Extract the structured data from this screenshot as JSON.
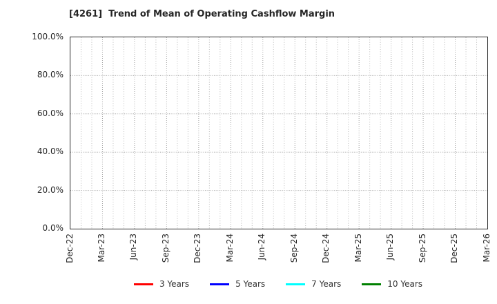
{
  "colors": {
    "background": "#ffffff",
    "text": "#262626",
    "spine": "#262626",
    "grid_minor": "#bdbdbd",
    "grid_major": "#a6a6a6",
    "legend_text": "#333333"
  },
  "chart_data": {
    "type": "line",
    "title": "[4261]  Trend of Mean of Operating Cashflow Margin",
    "x_axis": {
      "tick_labels": [
        "Dec-22",
        "Mar-23",
        "Jun-23",
        "Sep-23",
        "Dec-23",
        "Mar-24",
        "Jun-24",
        "Sep-24",
        "Dec-24",
        "Mar-25",
        "Jun-25",
        "Sep-25",
        "Dec-25",
        "Mar-26"
      ],
      "tick_label_rotation_deg": 90,
      "months_per_tick": 3,
      "total_month_intervals": 39
    },
    "y_axis": {
      "tick_labels": [
        "0.0%",
        "20.0%",
        "40.0%",
        "60.0%",
        "80.0%",
        "100.0%"
      ],
      "tick_values": [
        0,
        20,
        40,
        60,
        80,
        100
      ],
      "min": 0,
      "max": 100,
      "step": 20
    },
    "grid": true,
    "legend_position": "bottom-center",
    "series": [
      {
        "name": "3 Years",
        "color": "#ff0000",
        "values": []
      },
      {
        "name": "5 Years",
        "color": "#0000ff",
        "values": []
      },
      {
        "name": "7 Years",
        "color": "#00ffff",
        "values": []
      },
      {
        "name": "10 Years",
        "color": "#008000",
        "values": []
      }
    ],
    "plotted_data_visible": false
  }
}
